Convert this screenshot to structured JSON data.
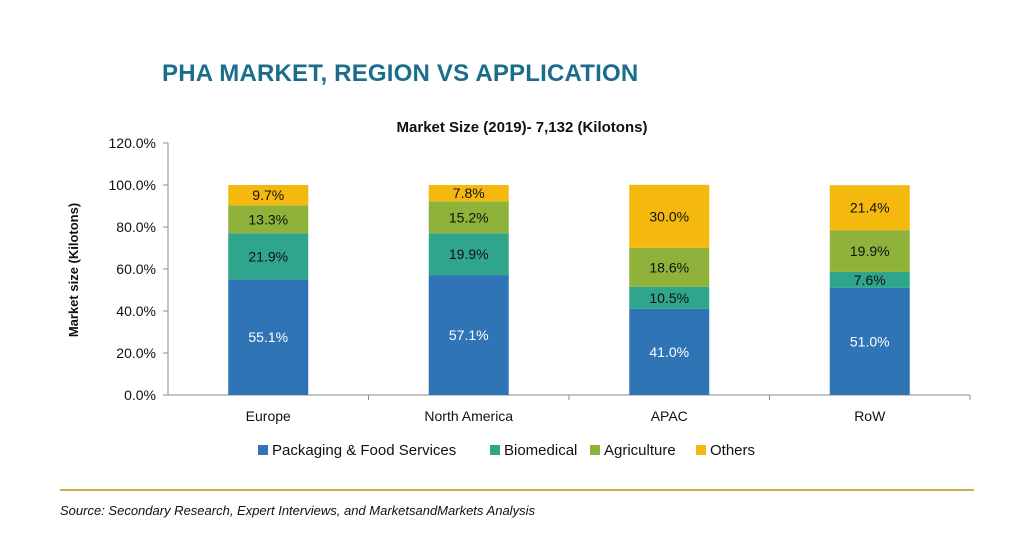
{
  "title": "PHA MARKET, REGION VS APPLICATION",
  "source": "Source: Secondary Research, Expert Interviews, and MarketsandMarkets Analysis",
  "chart_data": {
    "type": "bar",
    "stacked": true,
    "subtitle": "Market Size (2019)- 7,132 (Kilotons)",
    "ylabel": "Market size (Kilotons)",
    "xlabel": "",
    "ylim": [
      0,
      120
    ],
    "yticks": [
      "0.0%",
      "20.0%",
      "40.0%",
      "60.0%",
      "80.0%",
      "100.0%",
      "120.0%"
    ],
    "ytick_values": [
      0,
      20,
      40,
      60,
      80,
      100,
      120
    ],
    "categories": [
      "Europe",
      "North America",
      "APAC",
      "RoW"
    ],
    "series": [
      {
        "name": "Packaging & Food Services",
        "color": "#2f75b5",
        "label_color": "#ffffff",
        "values": [
          55.1,
          57.1,
          41.0,
          51.0
        ],
        "labels": [
          "55.1%",
          "57.1%",
          "41.0%",
          "51.0%"
        ]
      },
      {
        "name": "Biomedical",
        "color": "#2fa58c",
        "label_color": "#111111",
        "values": [
          21.9,
          19.9,
          10.5,
          7.6
        ],
        "labels": [
          "21.9%",
          "19.9%",
          "10.5%",
          "7.6%"
        ]
      },
      {
        "name": "Agriculture",
        "color": "#8fb33a",
        "label_color": "#111111",
        "values": [
          13.3,
          15.2,
          18.6,
          19.9
        ],
        "labels": [
          "13.3%",
          "15.2%",
          "18.6%",
          "19.9%"
        ]
      },
      {
        "name": "Others",
        "color": "#f5b80f",
        "label_color": "#111111",
        "values": [
          9.7,
          7.8,
          30.0,
          21.4
        ],
        "labels": [
          "9.7%",
          "7.8%",
          "30.0%",
          "21.4%"
        ]
      }
    ],
    "grid": false,
    "legend": "bottom"
  }
}
